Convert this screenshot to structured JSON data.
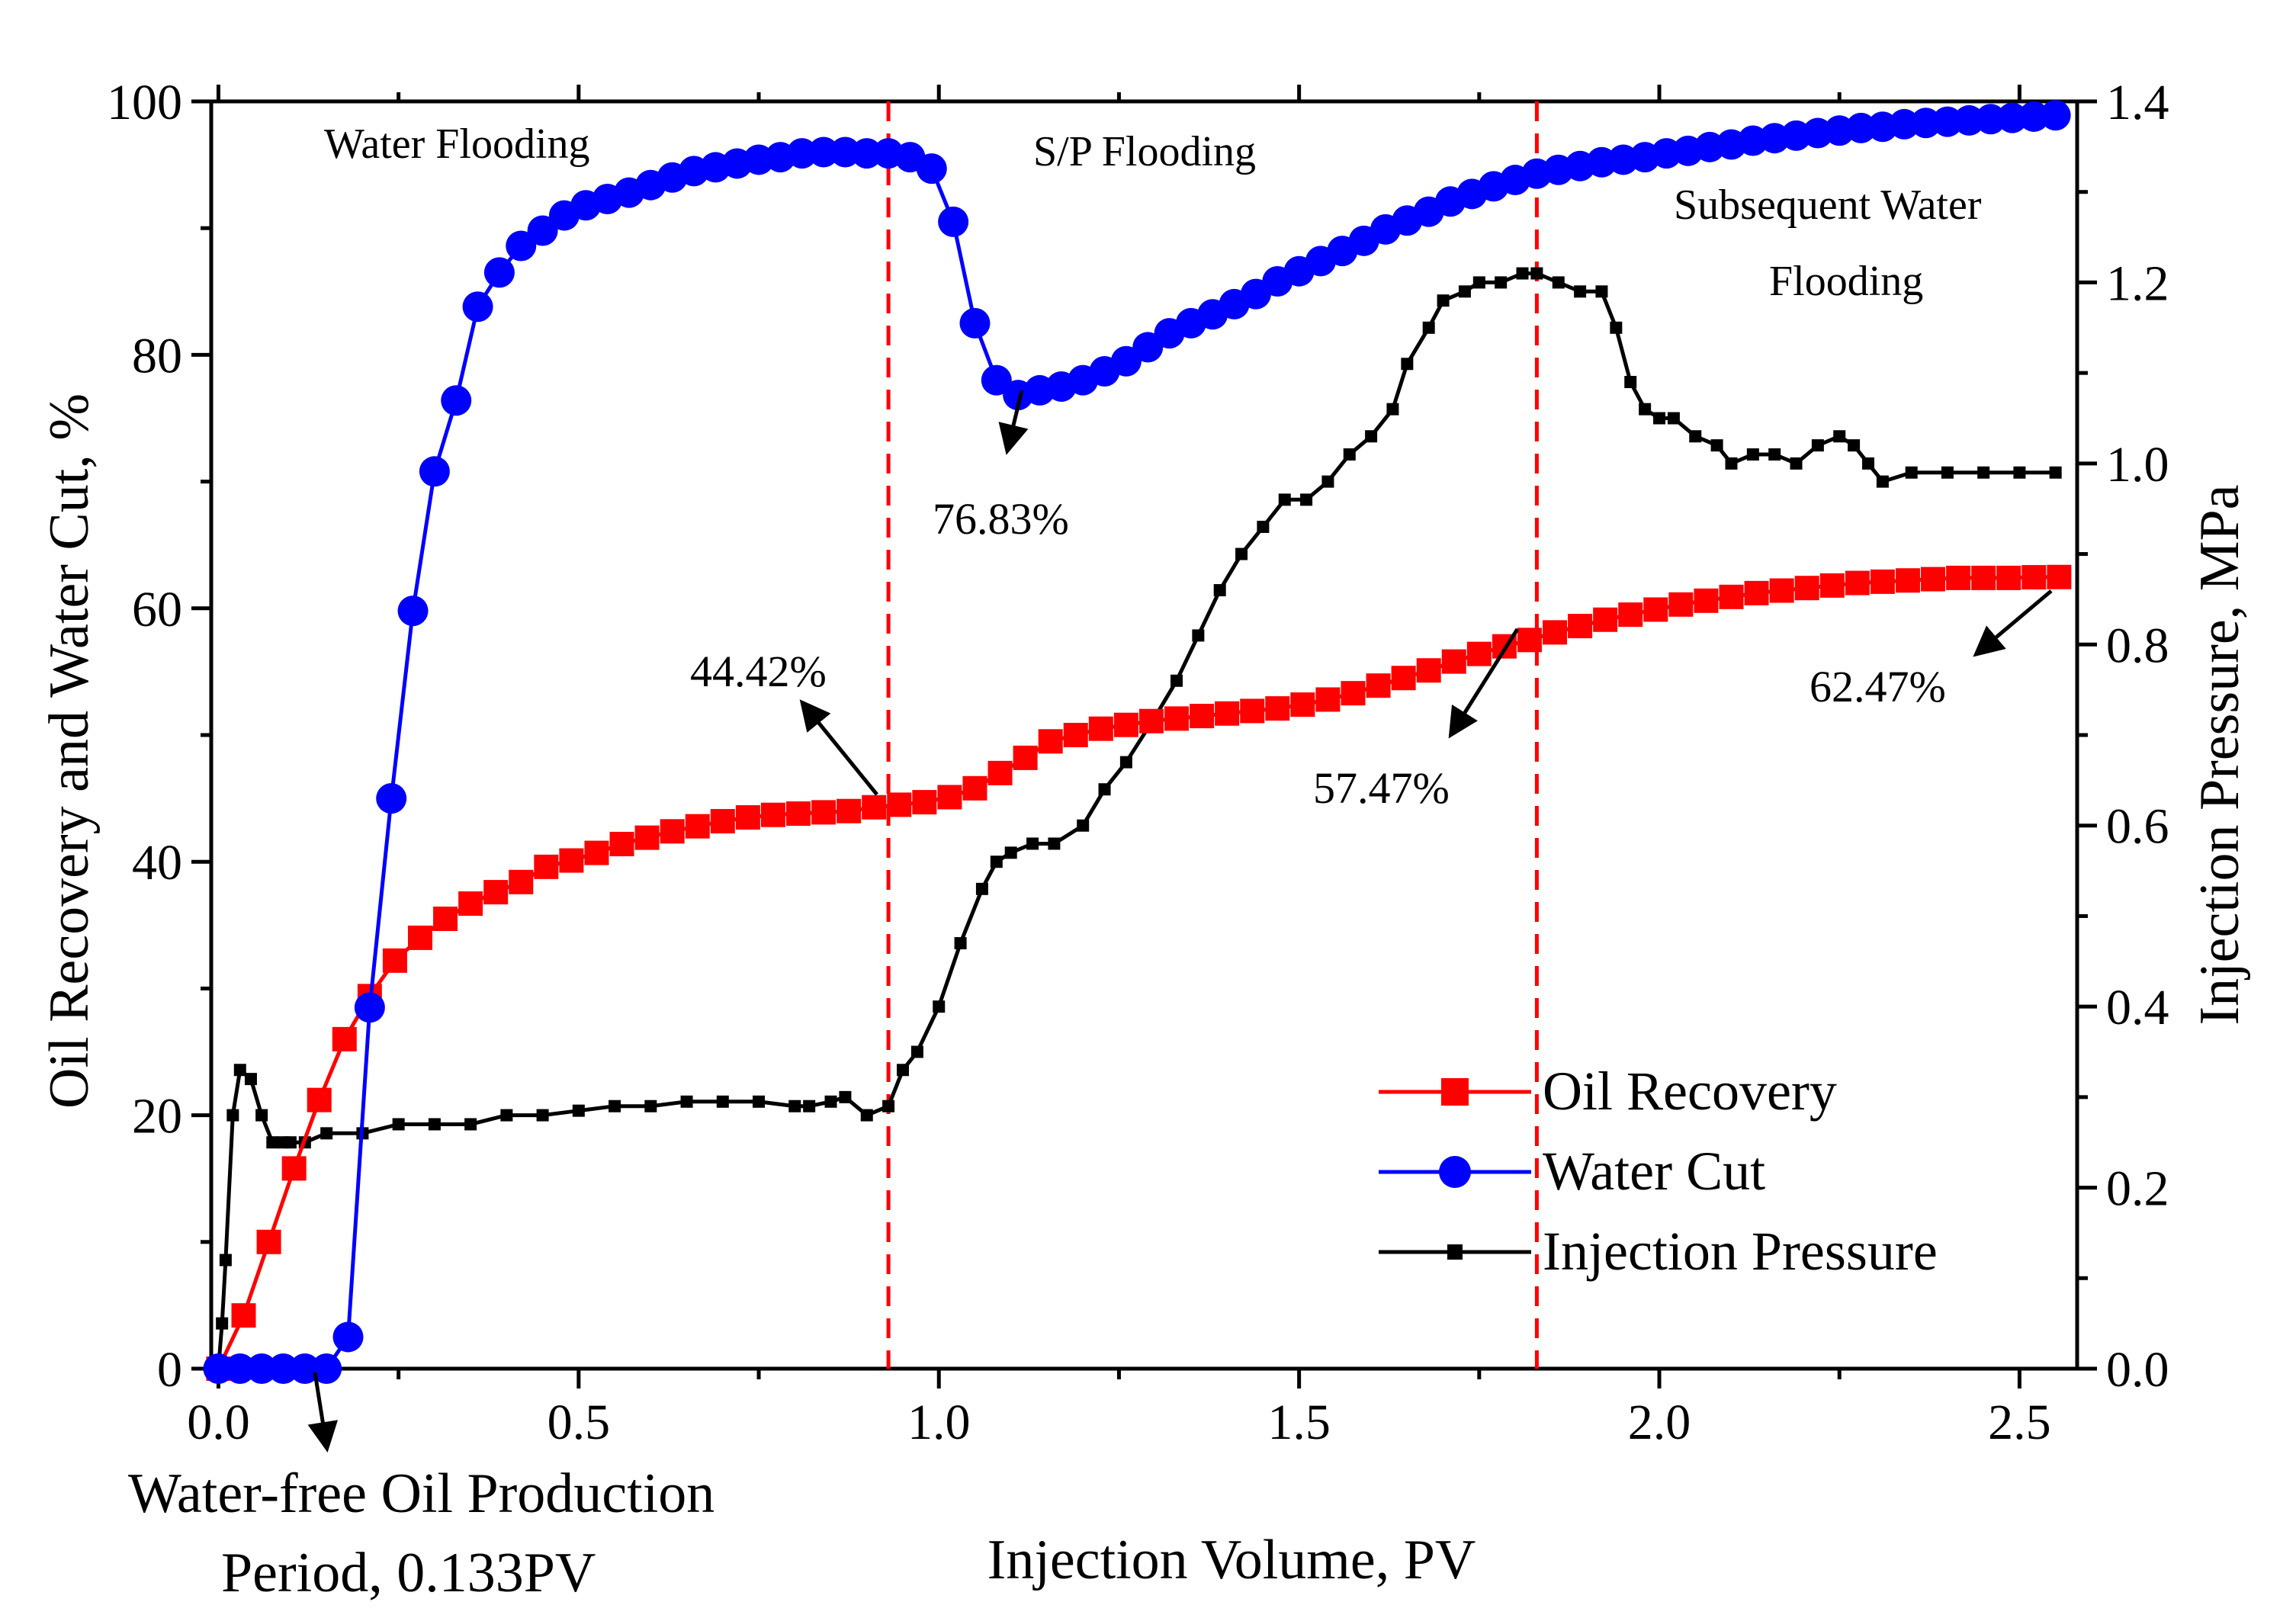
{
  "chart_data": {
    "type": "line",
    "xlabel": "Injection Volume, PV",
    "ylabel": "Oil Recovery and Water Cut, %",
    "y2label": "Injection Pressure, MPa",
    "xlim": [
      -0.01,
      2.58
    ],
    "ylim": [
      0,
      100
    ],
    "y2lim": [
      0,
      1.4
    ],
    "x_ticks": [
      0.0,
      0.5,
      1.0,
      1.5,
      2.0,
      2.5
    ],
    "x_tick_labels": [
      "0.0",
      "0.5",
      "1.0",
      "1.5",
      "2.0",
      "2.5"
    ],
    "y_ticks": [
      0,
      20,
      40,
      60,
      80,
      100
    ],
    "y_tick_labels": [
      "0",
      "20",
      "40",
      "60",
      "80",
      "100"
    ],
    "y2_ticks": [
      0.0,
      0.2,
      0.4,
      0.6,
      0.8,
      1.0,
      1.2,
      1.4
    ],
    "y2_tick_labels": [
      "0.0",
      "0.2",
      "0.4",
      "0.6",
      "0.8",
      "1.0",
      "1.2",
      "1.4"
    ],
    "stage_dividers": [
      0.93,
      1.83
    ],
    "stages": [
      {
        "label": "Water Flooding"
      },
      {
        "label": "S/P Flooding"
      },
      {
        "label": "Subsequent Water",
        "label2": "Flooding"
      }
    ],
    "annotations": [
      {
        "text": "76.83%"
      },
      {
        "text": "44.42%"
      },
      {
        "text": "57.47%"
      },
      {
        "text": "62.47%"
      },
      {
        "text": "Water-free Oil Production",
        "text2": "Period, 0.133PV"
      }
    ],
    "legend_position": "bottom-right",
    "series": [
      {
        "name": "Oil Recovery",
        "axis": "left",
        "color": "#ff0000",
        "marker": "square",
        "x": [
          0.0,
          0.035,
          0.07,
          0.105,
          0.14,
          0.175,
          0.21,
          0.245,
          0.28,
          0.315,
          0.35,
          0.385,
          0.42,
          0.455,
          0.49,
          0.525,
          0.56,
          0.595,
          0.63,
          0.665,
          0.7,
          0.735,
          0.77,
          0.805,
          0.84,
          0.875,
          0.91,
          0.945,
          0.98,
          1.015,
          1.05,
          1.085,
          1.12,
          1.155,
          1.19,
          1.225,
          1.26,
          1.295,
          1.33,
          1.365,
          1.4,
          1.435,
          1.47,
          1.505,
          1.54,
          1.575,
          1.61,
          1.645,
          1.68,
          1.715,
          1.75,
          1.785,
          1.82,
          1.855,
          1.89,
          1.925,
          1.96,
          1.995,
          2.03,
          2.065,
          2.1,
          2.135,
          2.17,
          2.205,
          2.24,
          2.275,
          2.31,
          2.345,
          2.38,
          2.415,
          2.45,
          2.485,
          2.52,
          2.555
        ],
        "y": [
          0.0,
          4.2,
          10.0,
          15.8,
          21.2,
          26.0,
          29.4,
          32.2,
          34.0,
          35.5,
          36.7,
          37.6,
          38.4,
          39.6,
          40.1,
          40.7,
          41.4,
          41.9,
          42.4,
          42.8,
          43.2,
          43.5,
          43.7,
          43.8,
          43.9,
          44.0,
          44.3,
          44.5,
          44.7,
          45.1,
          45.8,
          47.0,
          48.2,
          49.5,
          50.0,
          50.5,
          50.8,
          51.1,
          51.3,
          51.5,
          51.7,
          51.9,
          52.1,
          52.4,
          52.8,
          53.3,
          53.9,
          54.5,
          55.1,
          55.8,
          56.4,
          57.0,
          57.5,
          58.1,
          58.6,
          59.1,
          59.5,
          59.9,
          60.3,
          60.6,
          60.9,
          61.2,
          61.4,
          61.6,
          61.8,
          62.0,
          62.1,
          62.2,
          62.3,
          62.4,
          62.4,
          62.4,
          62.45,
          62.47
        ]
      },
      {
        "name": "Water Cut",
        "axis": "left",
        "color": "#0000ff",
        "marker": "circle",
        "x": [
          0.0,
          0.03,
          0.06,
          0.09,
          0.12,
          0.15,
          0.18,
          0.21,
          0.24,
          0.27,
          0.3,
          0.33,
          0.36,
          0.39,
          0.42,
          0.45,
          0.48,
          0.51,
          0.54,
          0.57,
          0.6,
          0.63,
          0.66,
          0.69,
          0.72,
          0.75,
          0.78,
          0.81,
          0.84,
          0.87,
          0.9,
          0.93,
          0.96,
          0.99,
          1.02,
          1.05,
          1.08,
          1.11,
          1.14,
          1.17,
          1.2,
          1.23,
          1.26,
          1.29,
          1.32,
          1.35,
          1.38,
          1.41,
          1.44,
          1.47,
          1.5,
          1.53,
          1.56,
          1.59,
          1.62,
          1.65,
          1.68,
          1.71,
          1.74,
          1.77,
          1.8,
          1.83,
          1.86,
          1.89,
          1.92,
          1.95,
          1.98,
          2.01,
          2.04,
          2.07,
          2.1,
          2.13,
          2.16,
          2.19,
          2.22,
          2.25,
          2.28,
          2.31,
          2.34,
          2.37,
          2.4,
          2.43,
          2.46,
          2.49,
          2.52,
          2.55
        ],
        "y": [
          0.0,
          0.0,
          0.0,
          0.0,
          0.0,
          0.0,
          2.5,
          28.5,
          45.0,
          59.8,
          70.8,
          76.4,
          83.8,
          86.5,
          88.6,
          89.8,
          91.0,
          91.8,
          92.3,
          92.8,
          93.4,
          94.0,
          94.5,
          94.8,
          95.1,
          95.4,
          95.6,
          95.9,
          96.0,
          96.0,
          95.9,
          95.9,
          95.6,
          94.7,
          90.5,
          82.5,
          78.0,
          76.83,
          77.2,
          77.5,
          78.0,
          78.7,
          79.5,
          80.6,
          81.7,
          82.5,
          83.2,
          84.0,
          84.8,
          85.8,
          86.6,
          87.4,
          88.2,
          89.0,
          89.9,
          90.6,
          91.3,
          92.1,
          92.7,
          93.3,
          93.8,
          94.3,
          94.6,
          94.9,
          95.2,
          95.4,
          95.6,
          95.9,
          96.1,
          96.4,
          96.6,
          96.9,
          97.1,
          97.3,
          97.5,
          97.7,
          97.9,
          98.0,
          98.2,
          98.3,
          98.4,
          98.5,
          98.6,
          98.7,
          98.8,
          98.9
        ]
      },
      {
        "name": "Injection Pressure",
        "axis": "right",
        "color": "#000000",
        "marker": "small-square",
        "x": [
          0.0,
          0.005,
          0.01,
          0.02,
          0.03,
          0.045,
          0.06,
          0.075,
          0.09,
          0.1,
          0.12,
          0.15,
          0.2,
          0.25,
          0.3,
          0.35,
          0.4,
          0.45,
          0.5,
          0.55,
          0.6,
          0.65,
          0.7,
          0.75,
          0.8,
          0.82,
          0.85,
          0.87,
          0.9,
          0.93,
          0.95,
          0.97,
          1.0,
          1.03,
          1.06,
          1.08,
          1.1,
          1.13,
          1.16,
          1.2,
          1.23,
          1.26,
          1.3,
          1.33,
          1.36,
          1.39,
          1.42,
          1.45,
          1.48,
          1.51,
          1.54,
          1.57,
          1.6,
          1.63,
          1.65,
          1.68,
          1.7,
          1.73,
          1.75,
          1.78,
          1.81,
          1.83,
          1.86,
          1.89,
          1.92,
          1.94,
          1.96,
          1.98,
          2.0,
          2.02,
          2.05,
          2.08,
          2.1,
          2.13,
          2.16,
          2.19,
          2.22,
          2.25,
          2.27,
          2.29,
          2.31,
          2.35,
          2.4,
          2.45,
          2.5,
          2.55
        ],
        "y": [
          0.0,
          0.05,
          0.12,
          0.28,
          0.33,
          0.32,
          0.28,
          0.25,
          0.25,
          0.25,
          0.25,
          0.26,
          0.26,
          0.27,
          0.27,
          0.27,
          0.28,
          0.28,
          0.285,
          0.29,
          0.29,
          0.295,
          0.295,
          0.295,
          0.29,
          0.29,
          0.295,
          0.3,
          0.28,
          0.29,
          0.33,
          0.35,
          0.4,
          0.47,
          0.53,
          0.56,
          0.57,
          0.58,
          0.58,
          0.6,
          0.64,
          0.67,
          0.72,
          0.76,
          0.81,
          0.86,
          0.9,
          0.93,
          0.96,
          0.96,
          0.98,
          1.01,
          1.03,
          1.06,
          1.11,
          1.15,
          1.18,
          1.19,
          1.2,
          1.2,
          1.21,
          1.21,
          1.2,
          1.19,
          1.19,
          1.15,
          1.09,
          1.06,
          1.05,
          1.05,
          1.03,
          1.02,
          1.0,
          1.01,
          1.01,
          1.0,
          1.02,
          1.03,
          1.02,
          1.0,
          0.98,
          0.99,
          0.99,
          0.99,
          0.99,
          0.99
        ]
      }
    ]
  }
}
